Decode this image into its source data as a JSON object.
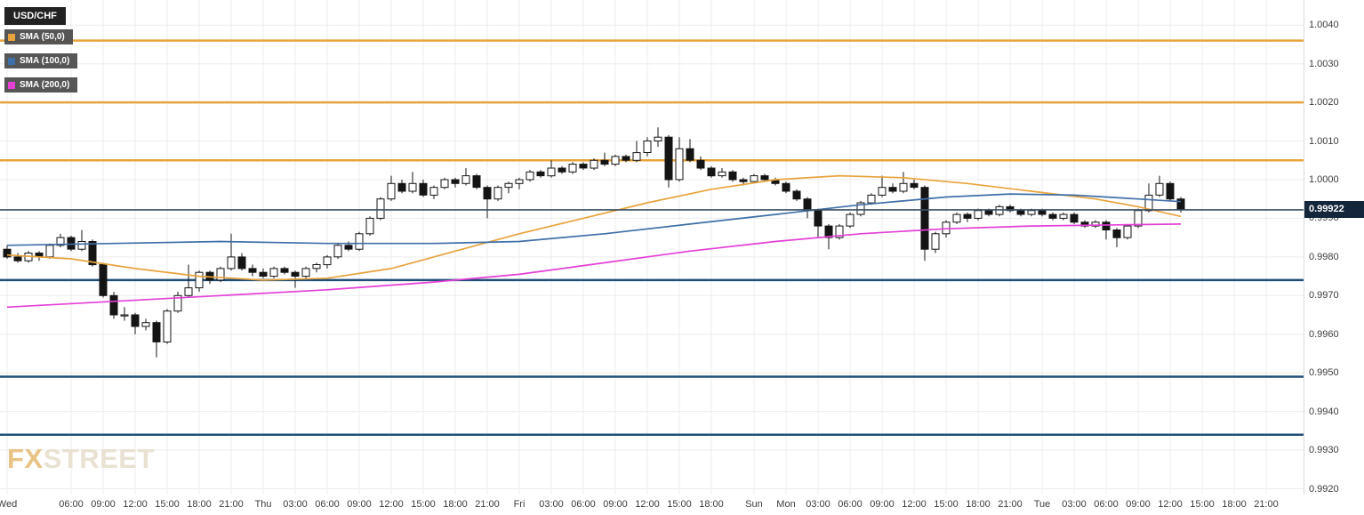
{
  "title": "USD/CHF",
  "colors": {
    "background": "#ffffff",
    "grid": "#ececec",
    "axis_text": "#3c3c3c",
    "candle_up_fill": "#ffffff",
    "candle_down_fill": "#141414",
    "candle_border": "#141414",
    "sma50": "#e8a33c",
    "sma100": "#3f6fa8",
    "sma200": "#e43fd7",
    "level_orange": "#e8a33c",
    "level_blue": "#1f4e79",
    "current_price_line": "#3a5064",
    "price_badge_bg": "#14273a",
    "price_badge_text": "#ffffff",
    "watermark_fx": "#e9c386",
    "watermark_street": "#e9e2d3"
  },
  "legend": {
    "symbol": "USD/CHF",
    "indicators": [
      {
        "label": "SMA (50,0)",
        "color": "#e8a33c"
      },
      {
        "label": "SMA (100,0)",
        "color": "#3f6fa8"
      },
      {
        "label": "SMA (200,0)",
        "color": "#e43fd7"
      }
    ]
  },
  "watermark": {
    "fx": "FX",
    "street": "STREET"
  },
  "price_axis": {
    "tick_labels": [
      "1.0040",
      "1.0030",
      "1.0020",
      "1.0010",
      "1.0000",
      "0.9990",
      "0.9980",
      "0.9970",
      "0.9960",
      "0.9950",
      "0.9940",
      "0.9930",
      "0.9920"
    ],
    "current_price_label": "0.99922"
  },
  "chart_data": {
    "type": "candlestick",
    "title": "USD/CHF",
    "legend_position": "top-left",
    "grid": true,
    "y_range": [
      0.99185,
      1.00465
    ],
    "price_ticks": [
      1.004,
      1.003,
      1.002,
      1.001,
      1.0,
      0.999,
      0.998,
      0.997,
      0.996,
      0.995,
      0.994,
      0.993,
      0.992
    ],
    "current_price": 0.99922,
    "levels": [
      {
        "price": 1.0036,
        "color": "orange"
      },
      {
        "price": 1.002,
        "color": "orange"
      },
      {
        "price": 1.0005,
        "color": "orange"
      },
      {
        "price": 0.9974,
        "color": "blue"
      },
      {
        "price": 0.9949,
        "color": "blue"
      },
      {
        "price": 0.9934,
        "color": "blue"
      }
    ],
    "base": 0.99,
    "pip": 0.0001,
    "time_ticks": [
      {
        "label": "Wed",
        "i": 0
      },
      {
        "label": "06:00",
        "i": 6
      },
      {
        "label": "09:00",
        "i": 9
      },
      {
        "label": "12:00",
        "i": 12
      },
      {
        "label": "15:00",
        "i": 15
      },
      {
        "label": "18:00",
        "i": 18
      },
      {
        "label": "21:00",
        "i": 21
      },
      {
        "label": "Thu",
        "i": 24
      },
      {
        "label": "03:00",
        "i": 27
      },
      {
        "label": "06:00",
        "i": 30
      },
      {
        "label": "09:00",
        "i": 33
      },
      {
        "label": "12:00",
        "i": 36
      },
      {
        "label": "15:00",
        "i": 39
      },
      {
        "label": "18:00",
        "i": 42
      },
      {
        "label": "21:00",
        "i": 45
      },
      {
        "label": "Fri",
        "i": 48
      },
      {
        "label": "03:00",
        "i": 51
      },
      {
        "label": "06:00",
        "i": 54
      },
      {
        "label": "09:00",
        "i": 57
      },
      {
        "label": "12:00",
        "i": 60
      },
      {
        "label": "15:00",
        "i": 63
      },
      {
        "label": "18:00",
        "i": 66
      },
      {
        "label": "Sun",
        "i": 70
      },
      {
        "label": "Mon",
        "i": 73
      },
      {
        "label": "03:00",
        "i": 76
      },
      {
        "label": "06:00",
        "i": 79
      },
      {
        "label": "09:00",
        "i": 82
      },
      {
        "label": "12:00",
        "i": 85
      },
      {
        "label": "15:00",
        "i": 88
      },
      {
        "label": "18:00",
        "i": 91
      },
      {
        "label": "21:00",
        "i": 94
      },
      {
        "label": "Tue",
        "i": 97
      },
      {
        "label": "03:00",
        "i": 100
      },
      {
        "label": "06:00",
        "i": 103
      },
      {
        "label": "09:00",
        "i": 106
      },
      {
        "label": "12:00",
        "i": 109
      },
      {
        "label": "15:00",
        "i": 112
      },
      {
        "label": "18:00",
        "i": 115
      },
      {
        "label": "21:00",
        "i": 118
      }
    ],
    "candles_ohlc_pips": [
      [
        82,
        83,
        79.5,
        80
      ],
      [
        80,
        81,
        78.5,
        79
      ],
      [
        79,
        81.5,
        78.5,
        81
      ],
      [
        81,
        81.5,
        79,
        80
      ],
      [
        80,
        83.5,
        79.5,
        83
      ],
      [
        83,
        86,
        82.5,
        85
      ],
      [
        85,
        85.5,
        81.5,
        82
      ],
      [
        82,
        87,
        81.5,
        84
      ],
      [
        84,
        84.5,
        77.5,
        78
      ],
      [
        78,
        78.5,
        69.5,
        70
      ],
      [
        70,
        71,
        64,
        65
      ],
      [
        65,
        67,
        63.5,
        65
      ],
      [
        65,
        65.5,
        60,
        62
      ],
      [
        62,
        64,
        61,
        63
      ],
      [
        63,
        63.5,
        54,
        58
      ],
      [
        58,
        66.5,
        57.5,
        66
      ],
      [
        66,
        71,
        65.5,
        70
      ],
      [
        70,
        78,
        69.5,
        72
      ],
      [
        72,
        76.5,
        71,
        76
      ],
      [
        76,
        76.5,
        73,
        74
      ],
      [
        74,
        77.5,
        73.5,
        77
      ],
      [
        77,
        86,
        76.5,
        80
      ],
      [
        80,
        81,
        76.5,
        77
      ],
      [
        77,
        78,
        75,
        76
      ],
      [
        76,
        77,
        74.5,
        75
      ],
      [
        75,
        77.5,
        74.5,
        77
      ],
      [
        77,
        77.5,
        75.5,
        76
      ],
      [
        76,
        76.5,
        72,
        75
      ],
      [
        75,
        77.5,
        74.5,
        77
      ],
      [
        77,
        78.5,
        76,
        78
      ],
      [
        78,
        80.5,
        77,
        80
      ],
      [
        80,
        83.5,
        79.5,
        83
      ],
      [
        83,
        84,
        81.5,
        82
      ],
      [
        82,
        86.5,
        81.5,
        86
      ],
      [
        86,
        90.5,
        85.5,
        90
      ],
      [
        90,
        95.5,
        89.5,
        95
      ],
      [
        95,
        101,
        94.5,
        99
      ],
      [
        99,
        100,
        96.5,
        97
      ],
      [
        97,
        102,
        96.5,
        99
      ],
      [
        99,
        100,
        95.5,
        96
      ],
      [
        96,
        98.5,
        95,
        98
      ],
      [
        98,
        100.5,
        97.5,
        100
      ],
      [
        100,
        100.5,
        98,
        99
      ],
      [
        99,
        103,
        98.5,
        101
      ],
      [
        101,
        101.5,
        97.5,
        98
      ],
      [
        98,
        98.5,
        90,
        95
      ],
      [
        95,
        98.5,
        94.5,
        98
      ],
      [
        98,
        99.5,
        96.5,
        99
      ],
      [
        99,
        100.5,
        97.5,
        100
      ],
      [
        100,
        102.5,
        99.5,
        102
      ],
      [
        102,
        102.5,
        100.5,
        101
      ],
      [
        101,
        105,
        100.5,
        103
      ],
      [
        103,
        103.5,
        101.5,
        102
      ],
      [
        102,
        104.5,
        101.5,
        104
      ],
      [
        104,
        104.5,
        102.5,
        103
      ],
      [
        103,
        105.5,
        102.5,
        105
      ],
      [
        105,
        107,
        103.5,
        104
      ],
      [
        104,
        106.5,
        103.5,
        106
      ],
      [
        106,
        106.5,
        104.5,
        105
      ],
      [
        105,
        110,
        104.5,
        107
      ],
      [
        107,
        111,
        106,
        110
      ],
      [
        110,
        113.5,
        108.5,
        111
      ],
      [
        111,
        111.5,
        98,
        100
      ],
      [
        100,
        111,
        99.5,
        108
      ],
      [
        108,
        110.5,
        104.5,
        105
      ],
      [
        105,
        106,
        102.5,
        103
      ],
      [
        103,
        103.5,
        100.5,
        101
      ],
      [
        101,
        103,
        100.5,
        102
      ],
      [
        102,
        102.5,
        99.5,
        100
      ],
      [
        100,
        100.5,
        98.5,
        99.5
      ],
      [
        99.5,
        101.5,
        99,
        101
      ],
      [
        101,
        101.5,
        99.5,
        100
      ],
      [
        100,
        100.5,
        98.5,
        99
      ],
      [
        99,
        99.5,
        96.5,
        97
      ],
      [
        97,
        97.5,
        94.5,
        95
      ],
      [
        95,
        95.5,
        90,
        92
      ],
      [
        92,
        92.5,
        85,
        88
      ],
      [
        88,
        88.5,
        82,
        85
      ],
      [
        85,
        88.5,
        84.5,
        88
      ],
      [
        88,
        91.5,
        87.5,
        91
      ],
      [
        91,
        94.5,
        90.5,
        94
      ],
      [
        94,
        96.5,
        93.5,
        96
      ],
      [
        96,
        101,
        95.5,
        98
      ],
      [
        98,
        99,
        96.5,
        97
      ],
      [
        97,
        102,
        96.5,
        99
      ],
      [
        99,
        100,
        97.5,
        98
      ],
      [
        98,
        98.5,
        79,
        82
      ],
      [
        82,
        86.5,
        81,
        86
      ],
      [
        86,
        89.5,
        85,
        89
      ],
      [
        89,
        91.5,
        88.5,
        91
      ],
      [
        91,
        91.5,
        89,
        90
      ],
      [
        90,
        92.5,
        89.5,
        92
      ],
      [
        92,
        92.5,
        90.5,
        91
      ],
      [
        91,
        93.5,
        90.5,
        93
      ],
      [
        93,
        93.5,
        91.5,
        92
      ],
      [
        92,
        92.5,
        90.5,
        91
      ],
      [
        91,
        92.5,
        90.5,
        92
      ],
      [
        92,
        92.5,
        90.5,
        91
      ],
      [
        91,
        91.5,
        89.5,
        90
      ],
      [
        90,
        91.5,
        89.5,
        91
      ],
      [
        91,
        91.5,
        88.5,
        89
      ],
      [
        89,
        89.5,
        87.5,
        88
      ],
      [
        88,
        89.5,
        87.5,
        89
      ],
      [
        89,
        89.5,
        84.5,
        87
      ],
      [
        87,
        87.5,
        82.5,
        85
      ],
      [
        85,
        88.5,
        84.5,
        88
      ],
      [
        88,
        92.5,
        87.5,
        92
      ],
      [
        92,
        99,
        91.5,
        96
      ],
      [
        96,
        101,
        95.5,
        99
      ],
      [
        99,
        99.5,
        94.5,
        95
      ],
      [
        95,
        95.5,
        91.5,
        92.2
      ]
    ],
    "sma": [
      {
        "label": "SMA (50,0)",
        "color_key": "sma50",
        "points": [
          [
            0,
            80.5
          ],
          [
            6,
            79.5
          ],
          [
            12,
            77
          ],
          [
            18,
            75
          ],
          [
            24,
            74
          ],
          [
            30,
            74.5
          ],
          [
            36,
            77
          ],
          [
            42,
            81.5
          ],
          [
            48,
            86
          ],
          [
            54,
            90
          ],
          [
            60,
            94
          ],
          [
            66,
            97.5
          ],
          [
            72,
            100
          ],
          [
            78,
            101
          ],
          [
            84,
            100.5
          ],
          [
            90,
            99
          ],
          [
            96,
            97
          ],
          [
            102,
            95
          ],
          [
            106,
            93
          ],
          [
            110,
            90.5
          ]
        ]
      },
      {
        "label": "SMA (100,0)",
        "color_key": "sma100",
        "points": [
          [
            0,
            83
          ],
          [
            10,
            83.5
          ],
          [
            20,
            84
          ],
          [
            30,
            83.5
          ],
          [
            40,
            83.5
          ],
          [
            48,
            84
          ],
          [
            56,
            86
          ],
          [
            64,
            88.5
          ],
          [
            72,
            91
          ],
          [
            80,
            93.5
          ],
          [
            88,
            95.5
          ],
          [
            94,
            96.3
          ],
          [
            100,
            96
          ],
          [
            106,
            95
          ],
          [
            110,
            94.3
          ]
        ]
      },
      {
        "label": "SMA (200,0)",
        "color_key": "sma200",
        "points": [
          [
            0,
            67
          ],
          [
            10,
            68.5
          ],
          [
            20,
            70
          ],
          [
            30,
            71.5
          ],
          [
            40,
            73.5
          ],
          [
            48,
            75.5
          ],
          [
            56,
            78.5
          ],
          [
            64,
            81.5
          ],
          [
            72,
            84
          ],
          [
            80,
            86
          ],
          [
            88,
            87.3
          ],
          [
            96,
            88
          ],
          [
            104,
            88.3
          ],
          [
            110,
            88.5
          ]
        ]
      }
    ]
  }
}
